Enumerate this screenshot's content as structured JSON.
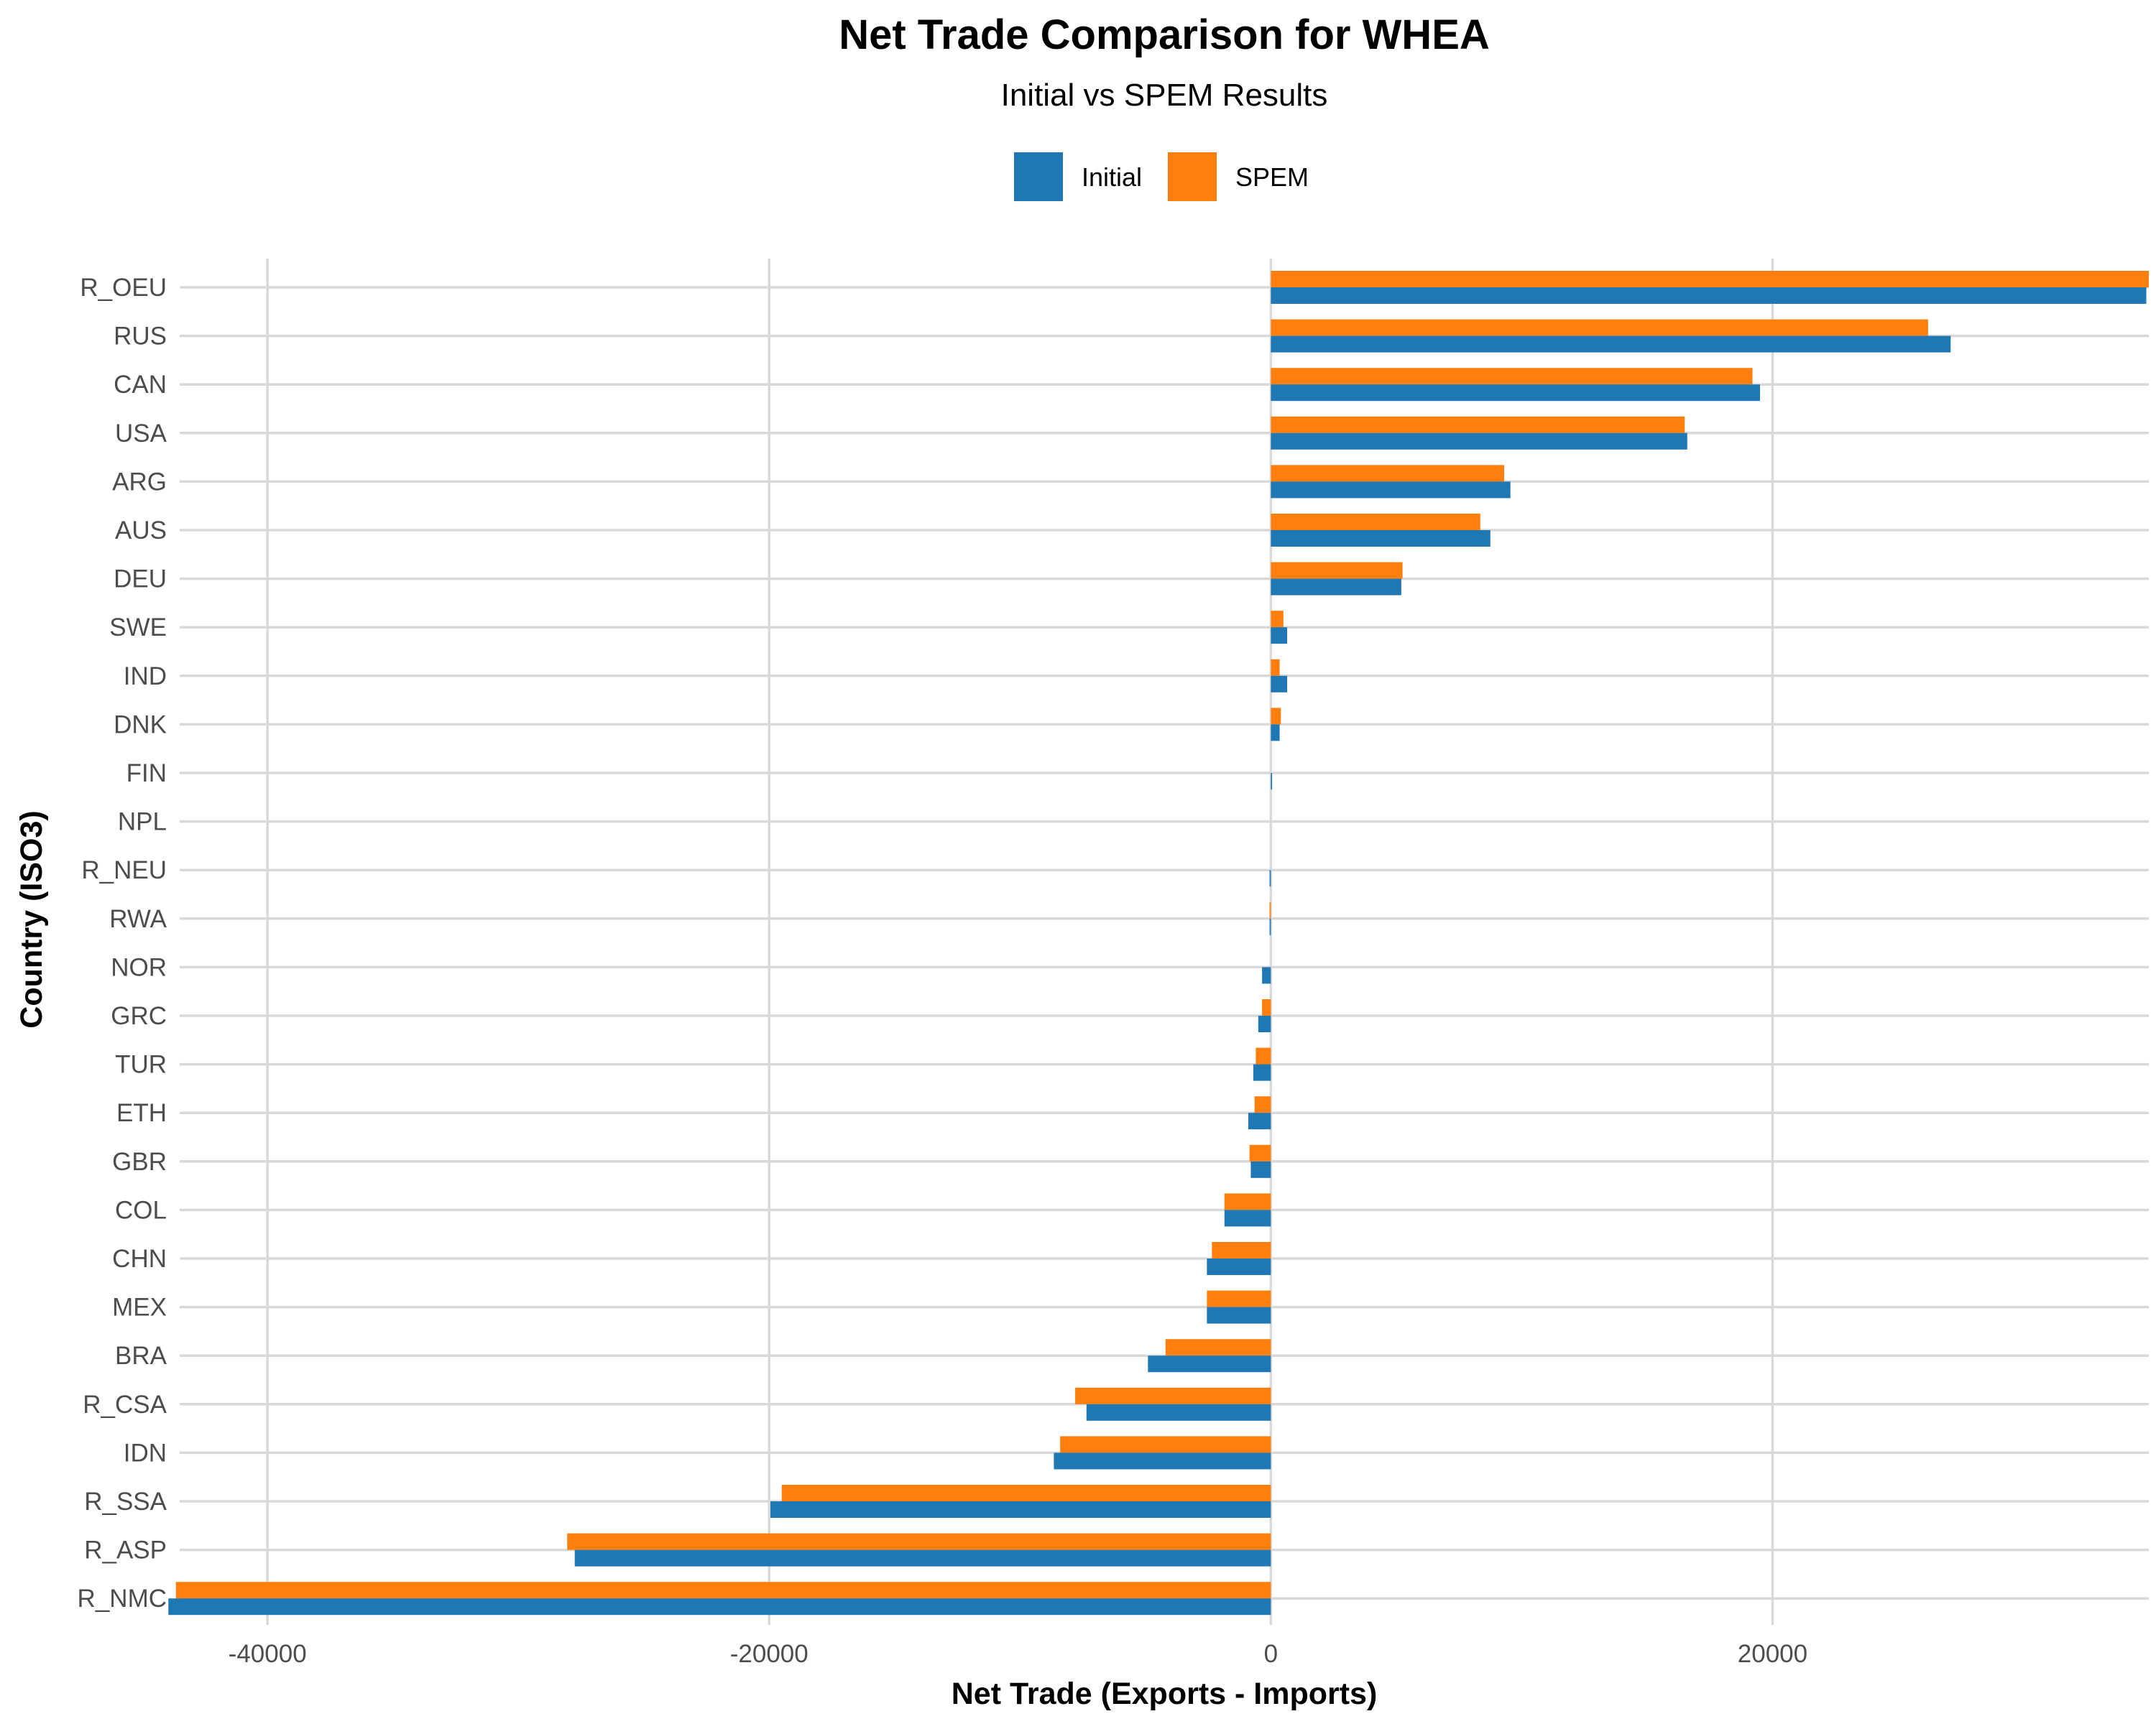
{
  "chart_data": {
    "type": "bar",
    "orientation": "horizontal",
    "title": "Net Trade Comparison for WHEA",
    "subtitle": "Initial vs SPEM Results",
    "xlabel": "Net Trade (Exports - Imports)",
    "ylabel": "Country (ISO3)",
    "xlim": [
      -43500,
      35000
    ],
    "xticks": [
      -40000,
      -20000,
      0,
      20000
    ],
    "grid": true,
    "legend_position": "top",
    "categories": [
      "R_OEU",
      "RUS",
      "CAN",
      "USA",
      "ARG",
      "AUS",
      "DEU",
      "SWE",
      "IND",
      "DNK",
      "FIN",
      "NPL",
      "R_NEU",
      "RWA",
      "NOR",
      "GRC",
      "TUR",
      "ETH",
      "GBR",
      "COL",
      "CHN",
      "MEX",
      "BRA",
      "R_CSA",
      "IDN",
      "R_SSA",
      "R_ASP",
      "R_NMC"
    ],
    "series": [
      {
        "name": "Initial",
        "color": "#1f77b4",
        "values": [
          34900,
          27100,
          19500,
          16600,
          9550,
          8750,
          5200,
          650,
          650,
          350,
          50,
          0,
          -50,
          -50,
          -350,
          -500,
          -700,
          -900,
          -800,
          -1850,
          -2550,
          -2550,
          -4900,
          -7350,
          -8650,
          -19950,
          -27750,
          -43950
        ]
      },
      {
        "name": "SPEM",
        "color": "#ff7f0e",
        "values": [
          35000,
          26200,
          19200,
          16500,
          9300,
          8350,
          5250,
          500,
          350,
          400,
          0,
          0,
          0,
          -50,
          0,
          -350,
          -600,
          -650,
          -850,
          -1850,
          -2350,
          -2550,
          -4200,
          -7800,
          -8400,
          -19500,
          -28050,
          -43650
        ]
      }
    ]
  }
}
